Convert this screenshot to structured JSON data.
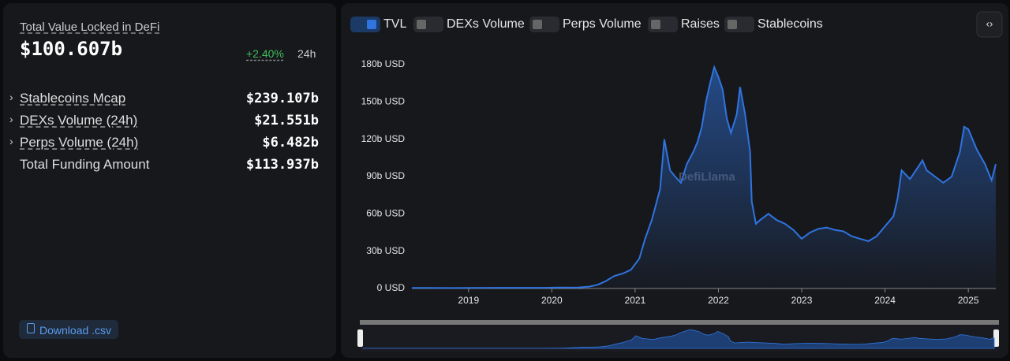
{
  "stats": {
    "title": "Total Value Locked in DeFi",
    "value": "$100.607b",
    "change": "+2.40%",
    "period": "24h",
    "rows": [
      {
        "label": "Stablecoins Mcap",
        "value": "$239.107b"
      },
      {
        "label": "DEXs Volume (24h)",
        "value": "$21.551b"
      },
      {
        "label": "Perps Volume (24h)",
        "value": "$6.482b"
      },
      {
        "label": "Total Funding Amount",
        "value": "$113.937b"
      }
    ],
    "download": "Download .csv"
  },
  "metric_toggles": [
    "DEXs Volume",
    "Perps Volume",
    "Raises",
    "Stablecoins"
  ],
  "watermark": "DefiLlama",
  "chart_data": {
    "type": "line",
    "series": [
      {
        "name": "TVL",
        "color": "#2f74e0",
        "x": [
          2018.32,
          2018.5,
          2018.8,
          2019.0,
          2019.3,
          2019.6,
          2019.9,
          2020.1,
          2020.3,
          2020.45,
          2020.55,
          2020.65,
          2020.75,
          2020.85,
          2020.95,
          2021.05,
          2021.12,
          2021.2,
          2021.3,
          2021.35,
          2021.42,
          2021.48,
          2021.55,
          2021.62,
          2021.7,
          2021.75,
          2021.8,
          2021.85,
          2021.9,
          2021.95,
          2022.0,
          2022.05,
          2022.1,
          2022.15,
          2022.22,
          2022.26,
          2022.32,
          2022.38,
          2022.4,
          2022.45,
          2022.5,
          2022.6,
          2022.7,
          2022.8,
          2022.9,
          2023.0,
          2023.1,
          2023.2,
          2023.3,
          2023.4,
          2023.5,
          2023.6,
          2023.7,
          2023.8,
          2023.9,
          2024.0,
          2024.1,
          2024.15,
          2024.2,
          2024.3,
          2024.4,
          2024.45,
          2024.5,
          2024.6,
          2024.7,
          2024.8,
          2024.9,
          2024.95,
          2025.0,
          2025.1,
          2025.2,
          2025.28,
          2025.33
        ],
        "values": [
          0.5,
          0.5,
          0.4,
          0.5,
          0.6,
          0.6,
          0.6,
          0.8,
          0.7,
          1.5,
          3,
          6,
          10,
          12,
          15,
          24,
          40,
          55,
          80,
          120,
          95,
          90,
          85,
          100,
          110,
          118,
          130,
          150,
          165,
          178,
          170,
          160,
          137,
          125,
          140,
          162,
          140,
          110,
          70,
          52,
          55,
          60,
          55,
          52,
          47,
          40,
          45,
          48,
          49,
          47,
          46,
          42,
          40,
          38,
          42,
          50,
          58,
          72,
          95,
          88,
          98,
          103,
          95,
          90,
          85,
          90,
          110,
          130,
          128,
          112,
          100,
          87,
          100
        ]
      }
    ],
    "xlim": [
      2018.32,
      2025.33
    ],
    "xticks": [
      2019,
      2020,
      2021,
      2022,
      2023,
      2024,
      2025
    ],
    "ylim": [
      0,
      180
    ],
    "yticks": [
      {
        "value": 0,
        "label": "0 USD"
      },
      {
        "value": 30,
        "label": "30b USD"
      },
      {
        "value": 60,
        "label": "60b USD"
      },
      {
        "value": 90,
        "label": "90b USD"
      },
      {
        "value": 120,
        "label": "120b USD"
      },
      {
        "value": 150,
        "label": "150b USD"
      },
      {
        "value": 180,
        "label": "180b USD"
      }
    ]
  }
}
